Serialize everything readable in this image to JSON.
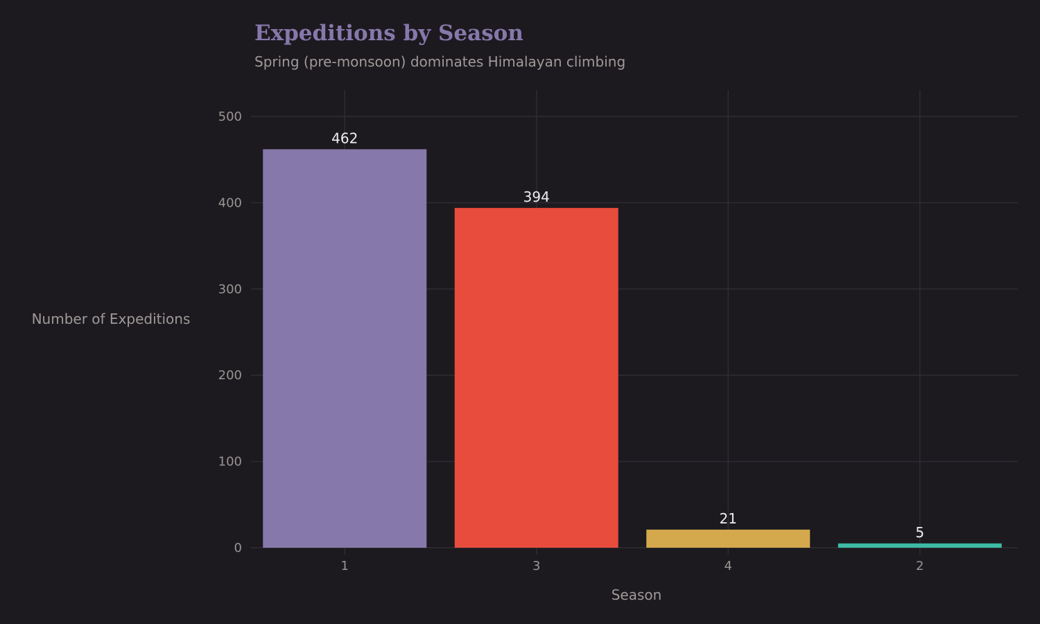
{
  "chart_data": {
    "type": "bar",
    "title": "Expeditions by Season",
    "subtitle": "Spring (pre-monsoon) dominates Himalayan climbing",
    "xlabel": "Season",
    "ylabel": "Number of Expeditions",
    "categories": [
      "1",
      "3",
      "4",
      "2"
    ],
    "values": [
      462,
      394,
      21,
      5
    ],
    "data_labels": [
      "462",
      "394",
      "21",
      "5"
    ],
    "colors": [
      "#8778ab",
      "#e74c3c",
      "#d4a84c",
      "#3dbaa6"
    ],
    "ylim": [
      0,
      530
    ],
    "yticks": [
      0,
      100,
      200,
      300,
      400,
      500
    ],
    "ytick_labels": [
      "0",
      "100",
      "200",
      "300",
      "400",
      "500"
    ],
    "grid": true,
    "legend": "none"
  },
  "colors": {
    "background": "#1c1a1f",
    "grid": "#2e2c32",
    "title": "#8778ab"
  }
}
